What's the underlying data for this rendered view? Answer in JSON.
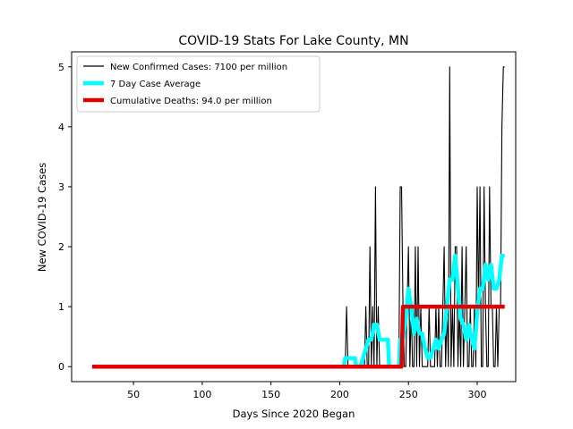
{
  "chart_data": {
    "type": "line",
    "title": "COVID-19 Stats For Lake County, MN",
    "xlabel": "Days Since 2020 Began",
    "ylabel": "New COVID-19 Cases",
    "xlim": [
      5,
      328
    ],
    "ylim": [
      -0.25,
      5.25
    ],
    "xticks": [
      50,
      100,
      150,
      200,
      250,
      300
    ],
    "yticks": [
      0,
      1,
      2,
      3,
      4,
      5
    ],
    "grid": false,
    "legend_position": "upper-left",
    "series": [
      {
        "name": "New Confirmed Cases: 7100 per million",
        "color": "#000000",
        "x": [
          20,
          204,
          205,
          206,
          217,
          218,
          219,
          220,
          221,
          222,
          223,
          224,
          225,
          226,
          227,
          228,
          229,
          230,
          243,
          244,
          245,
          246,
          247,
          248,
          249,
          250,
          251,
          252,
          253,
          254,
          255,
          256,
          257,
          258,
          259,
          260,
          261,
          262,
          263,
          264,
          265,
          266,
          267,
          268,
          269,
          270,
          271,
          272,
          273,
          274,
          275,
          276,
          277,
          278,
          279,
          280,
          281,
          282,
          283,
          284,
          285,
          286,
          287,
          288,
          289,
          290,
          291,
          292,
          293,
          294,
          295,
          296,
          297,
          298,
          299,
          300,
          301,
          302,
          303,
          304,
          305,
          306,
          307,
          308,
          309,
          310,
          311,
          312,
          313,
          314,
          315,
          316,
          317,
          318,
          319,
          320
        ],
        "y": [
          0,
          0,
          1,
          0,
          0,
          0,
          1,
          0,
          0,
          2,
          0,
          1,
          0,
          3,
          0,
          1,
          0,
          0,
          0,
          3,
          3,
          1,
          0,
          0,
          1,
          2,
          0,
          1,
          0,
          0,
          2,
          0,
          2,
          0,
          1,
          0,
          0,
          0,
          0,
          0,
          1,
          0,
          0,
          0,
          0,
          1,
          0,
          1,
          0,
          0,
          1,
          2,
          0,
          1,
          0,
          5,
          0,
          1,
          0,
          2,
          2,
          0,
          1,
          0,
          2,
          0,
          1,
          2,
          0,
          0,
          1,
          0,
          0,
          1,
          0,
          3,
          1,
          3,
          0,
          0,
          3,
          1,
          0,
          0,
          3,
          1,
          1,
          0,
          0,
          1,
          0,
          1,
          1,
          4,
          5,
          5
        ]
      },
      {
        "name": "7 Day Case Average",
        "color": "#00ffff",
        "x": [
          20,
          203,
          204,
          205,
          206,
          210,
          211,
          212,
          215,
          217,
          219,
          221,
          223,
          225,
          227,
          229,
          231,
          233,
          235,
          236,
          237,
          238,
          243,
          244,
          245,
          246,
          248,
          250,
          252,
          254,
          256,
          258,
          260,
          262,
          264,
          266,
          268,
          270,
          272,
          274,
          276,
          278,
          280,
          282,
          284,
          286,
          288,
          290,
          292,
          294,
          296,
          298,
          300,
          302,
          304,
          306,
          308,
          310,
          312,
          314,
          316,
          318,
          320
        ],
        "y": [
          0,
          0,
          0.14,
          0.14,
          0.14,
          0.14,
          0.14,
          0,
          0,
          0.14,
          0.3,
          0.45,
          0.45,
          0.7,
          0.7,
          0.45,
          0.45,
          0.45,
          0.45,
          0,
          0,
          0,
          0,
          0.45,
          0.45,
          0.45,
          0.8,
          1.3,
          1.0,
          0.55,
          0.8,
          0.55,
          0.55,
          0.3,
          0.15,
          0.15,
          0.3,
          0.45,
          0.3,
          0.45,
          0.55,
          1.0,
          1.45,
          1.45,
          1.85,
          1.3,
          0.8,
          0.7,
          0.45,
          0.7,
          0.45,
          0.3,
          0.9,
          1.3,
          1.3,
          1.7,
          1.45,
          1.7,
          1.3,
          1.3,
          1.45,
          1.85,
          1.85
        ]
      },
      {
        "name": "Cumulative Deaths: 94.0 per million",
        "color": "#e00000",
        "x": [
          20,
          245,
          246,
          320
        ],
        "y": [
          0,
          0,
          1,
          1
        ]
      }
    ]
  }
}
